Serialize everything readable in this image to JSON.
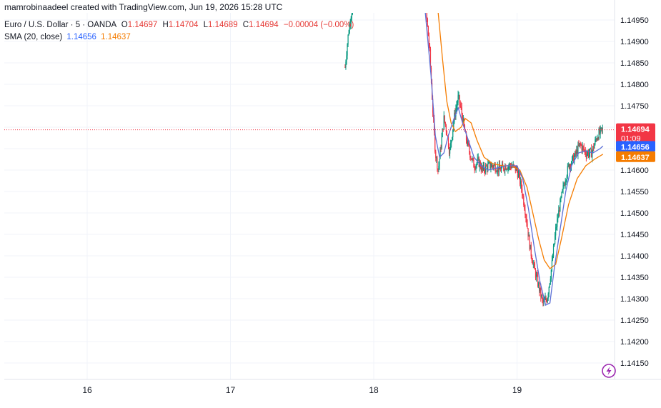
{
  "header": {
    "credit": "mamrobinaadeel created with TradingView.com, Jun 19, 2026 15:28 UTC",
    "symbol": "Euro / U.S. Dollar · 5 · OANDA",
    "open_key": "O",
    "open": "1.14697",
    "high_key": "H",
    "high": "1.14704",
    "low_key": "L",
    "low": "1.14689",
    "close_key": "C",
    "close": "1.14694",
    "change": "−0.00004 (−0.00%)",
    "sma_label": "SMA (20, close)",
    "sma_value_1": "1.14656",
    "sma_value_2": "1.14637"
  },
  "badges": {
    "price": "1.14694",
    "countdown": "01:09",
    "sma_fast": "1.14656",
    "sma_slow": "1.14637"
  },
  "colors": {
    "up": "#089981",
    "down": "#f23645",
    "sma_fast": "#5b6fd6",
    "sma_slow": "#f57c00",
    "price_badge": "#f23645",
    "grid": "#f0f3fa"
  },
  "icon": "tradingview-bolt-icon",
  "chart_data": {
    "type": "candlestick",
    "title": "Euro / U.S. Dollar · 5 · OANDA",
    "x_ticks": [
      "16",
      "17",
      "18",
      "19"
    ],
    "y_ticks": [
      "1.14950",
      "1.14900",
      "1.14850",
      "1.14800",
      "1.14750",
      "1.14700",
      "1.14650",
      "1.14600",
      "1.14550",
      "1.14500",
      "1.14450",
      "1.14400",
      "1.14350",
      "1.14300",
      "1.14250",
      "1.14200",
      "1.14150"
    ],
    "ylim": [
      1.1412,
      1.1499
    ],
    "grid": true,
    "last_price": 1.14694,
    "series": [
      {
        "name": "SMA (20, close)",
        "value": 1.14656
      },
      {
        "name": "SMA (20, close)",
        "value": 1.14637
      }
    ],
    "price_path": [
      [
        17.8,
        1.1484
      ],
      [
        17.82,
        1.1491
      ],
      [
        17.84,
        1.1496
      ],
      [
        17.86,
        1.1499
      ],
      [
        18.36,
        1.1499
      ],
      [
        18.39,
        1.1488
      ],
      [
        18.41,
        1.1475
      ],
      [
        18.43,
        1.1464
      ],
      [
        18.45,
        1.146
      ],
      [
        18.47,
        1.1466
      ],
      [
        18.49,
        1.1472
      ],
      [
        18.51,
        1.1469
      ],
      [
        18.53,
        1.1464
      ],
      [
        18.56,
        1.1472
      ],
      [
        18.59,
        1.1477
      ],
      [
        18.61,
        1.1474
      ],
      [
        18.64,
        1.1468
      ],
      [
        18.67,
        1.1464
      ],
      [
        18.7,
        1.1461
      ],
      [
        18.73,
        1.1462
      ],
      [
        18.76,
        1.146
      ],
      [
        18.8,
        1.1461
      ],
      [
        18.84,
        1.1461
      ],
      [
        18.88,
        1.146
      ],
      [
        18.92,
        1.1461
      ],
      [
        18.96,
        1.1461
      ],
      [
        19.0,
        1.146
      ],
      [
        19.03,
        1.1456
      ],
      [
        19.06,
        1.145
      ],
      [
        19.09,
        1.1442
      ],
      [
        19.12,
        1.1437
      ],
      [
        19.15,
        1.1433
      ],
      [
        19.18,
        1.1429
      ],
      [
        19.21,
        1.143
      ],
      [
        19.24,
        1.1437
      ],
      [
        19.27,
        1.1446
      ],
      [
        19.3,
        1.1452
      ],
      [
        19.33,
        1.1457
      ],
      [
        19.36,
        1.1461
      ],
      [
        19.4,
        1.1463
      ],
      [
        19.44,
        1.1466
      ],
      [
        19.48,
        1.1464
      ],
      [
        19.52,
        1.1464
      ],
      [
        19.56,
        1.1468
      ],
      [
        19.6,
        1.14694
      ]
    ],
    "sma_fast_path": [
      [
        18.36,
        1.1498
      ],
      [
        18.4,
        1.1482
      ],
      [
        18.43,
        1.1468
      ],
      [
        18.46,
        1.1463
      ],
      [
        18.49,
        1.1464
      ],
      [
        18.52,
        1.1468
      ],
      [
        18.56,
        1.1472
      ],
      [
        18.59,
        1.14745
      ],
      [
        18.62,
        1.1471
      ],
      [
        18.66,
        1.1467
      ],
      [
        18.7,
        1.1463
      ],
      [
        18.75,
        1.1461
      ],
      [
        18.8,
        1.146
      ],
      [
        18.86,
        1.14605
      ],
      [
        18.92,
        1.1461
      ],
      [
        19.0,
        1.1461
      ],
      [
        19.04,
        1.1458
      ],
      [
        19.08,
        1.1451
      ],
      [
        19.12,
        1.1442
      ],
      [
        19.16,
        1.1434
      ],
      [
        19.2,
        1.14285
      ],
      [
        19.23,
        1.1429
      ],
      [
        19.26,
        1.1437
      ],
      [
        19.3,
        1.1446
      ],
      [
        19.34,
        1.1455
      ],
      [
        19.38,
        1.1461
      ],
      [
        19.43,
        1.1464
      ],
      [
        19.48,
        1.14645
      ],
      [
        19.53,
        1.1464
      ],
      [
        19.58,
        1.1465
      ],
      [
        19.6,
        1.14656
      ]
    ],
    "sma_slow_path": [
      [
        18.45,
        1.1498
      ],
      [
        18.48,
        1.1486
      ],
      [
        18.51,
        1.1476
      ],
      [
        18.54,
        1.1471
      ],
      [
        18.57,
        1.1469
      ],
      [
        18.61,
        1.147
      ],
      [
        18.64,
        1.1472
      ],
      [
        18.68,
        1.1471
      ],
      [
        18.72,
        1.1467
      ],
      [
        18.77,
        1.1463
      ],
      [
        18.83,
        1.14615
      ],
      [
        18.9,
        1.1461
      ],
      [
        18.96,
        1.1461
      ],
      [
        19.02,
        1.146
      ],
      [
        19.07,
        1.1456
      ],
      [
        19.11,
        1.145
      ],
      [
        19.15,
        1.1444
      ],
      [
        19.19,
        1.1439
      ],
      [
        19.23,
        1.1437
      ],
      [
        19.27,
        1.1438
      ],
      [
        19.31,
        1.1444
      ],
      [
        19.36,
        1.1452
      ],
      [
        19.42,
        1.1458
      ],
      [
        19.48,
        1.1461
      ],
      [
        19.54,
        1.14625
      ],
      [
        19.6,
        1.14637
      ]
    ]
  }
}
